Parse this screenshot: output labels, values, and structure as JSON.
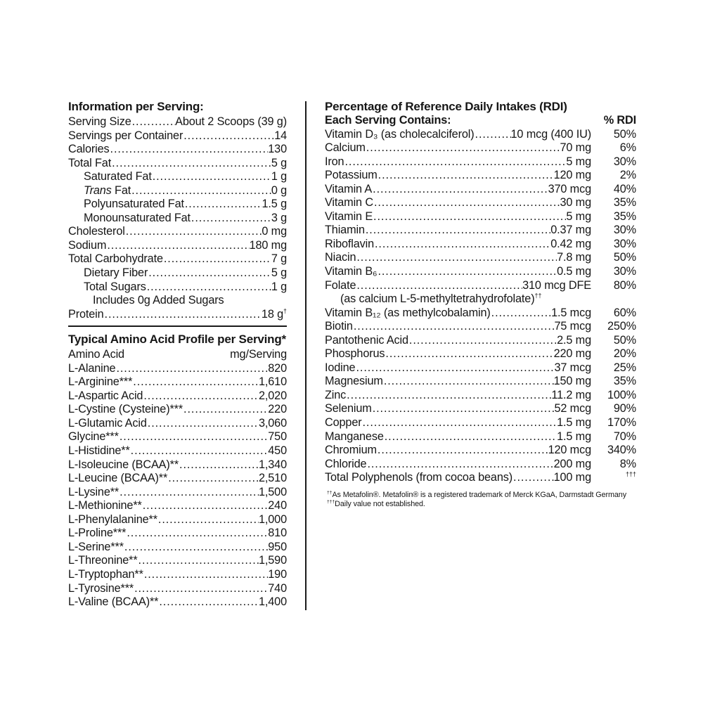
{
  "info": {
    "title": "Information per Serving:",
    "rows": [
      {
        "label": "Serving Size",
        "value": "About 2 Scoops (39 g)"
      },
      {
        "label": "Servings per Container",
        "value": "14"
      },
      {
        "label": "Calories",
        "value": "130"
      },
      {
        "label": "Total Fat",
        "value": "5 g"
      },
      {
        "label": "Saturated Fat",
        "value": "1 g",
        "indent": 1
      },
      {
        "label_em": "Trans",
        "label": " Fat",
        "value": "0 g",
        "indent": 1
      },
      {
        "label": "Polyunsaturated Fat",
        "value": "1.5 g",
        "indent": 1
      },
      {
        "label": "Monounsaturated Fat",
        "value": "3 g",
        "indent": 1
      },
      {
        "label": "Cholesterol",
        "value": "0 mg"
      },
      {
        "label": "Sodium",
        "value": "180 mg"
      },
      {
        "label": "Total Carbohydrate",
        "value": "7 g"
      },
      {
        "label": "Dietary Fiber",
        "value": "5 g",
        "indent": 1
      },
      {
        "label": "Total Sugars",
        "value": "1 g",
        "indent": 1
      },
      {
        "label": "Includes 0g Added Sugars",
        "indent": 2
      },
      {
        "label": "Protein",
        "value": "18 g",
        "value_sup": "†"
      }
    ]
  },
  "amino": {
    "title": "Typical Amino Acid Profile per Serving*",
    "col_label": "Amino Acid",
    "col_value": "mg/Serving",
    "rows": [
      {
        "label": "L-Alanine",
        "value": "820"
      },
      {
        "label": "L-Arginine***",
        "value": "1,610"
      },
      {
        "label": "L-Aspartic Acid",
        "value": "2,020"
      },
      {
        "label": "L-Cystine (Cysteine)***",
        "value": "220"
      },
      {
        "label": "L-Glutamic Acid",
        "value": "3,060"
      },
      {
        "label": "Glycine***",
        "value": "750"
      },
      {
        "label": "L-Histidine**",
        "value": "450"
      },
      {
        "label": "L-Isoleucine (BCAA)**",
        "value": "1,340"
      },
      {
        "label": "L-Leucine (BCAA)**",
        "value": "2,510"
      },
      {
        "label": "L-Lysine**",
        "value": "1,500"
      },
      {
        "label": "L-Methionine**",
        "value": "240"
      },
      {
        "label": "L-Phenylalanine**",
        "value": "1,000"
      },
      {
        "label": "L-Proline***",
        "value": "810"
      },
      {
        "label": "L-Serine***",
        "value": "950"
      },
      {
        "label": "L-Threonine**",
        "value": "1,590"
      },
      {
        "label": "L-Tryptophan**",
        "value": "190"
      },
      {
        "label": "L-Tyrosine***",
        "value": "740"
      },
      {
        "label": "L-Valine (BCAA)**",
        "value": "1,400"
      }
    ]
  },
  "rdi": {
    "title": "Percentage of Reference Daily Intakes (RDI)",
    "col_label": "Each Serving Contains:",
    "col_percent": "% RDI",
    "rows": [
      {
        "label": "Vitamin D₃ (as cholecalciferol)",
        "value": "10 mcg (400 IU)",
        "percent": "50%"
      },
      {
        "label": "Calcium",
        "value": "70 mg",
        "percent": "6%"
      },
      {
        "label": "Iron",
        "value": "5 mg",
        "percent": "30%"
      },
      {
        "label": "Potassium",
        "value": "120 mg",
        "percent": "2%"
      },
      {
        "label": "Vitamin A",
        "value": "370 mcg",
        "percent": "40%"
      },
      {
        "label": "Vitamin C",
        "value": "30 mg",
        "percent": "35%"
      },
      {
        "label": "Vitamin E",
        "value": "5 mg",
        "percent": "35%"
      },
      {
        "label": "Thiamin",
        "value": "0.37 mg",
        "percent": "30%"
      },
      {
        "label": "Riboflavin",
        "value": "0.42 mg",
        "percent": "30%"
      },
      {
        "label": "Niacin",
        "value": "7.8 mg",
        "percent": "50%"
      },
      {
        "label": "Vitamin B₆",
        "value": "0.5 mg",
        "percent": "30%"
      },
      {
        "label": "Folate",
        "value": "310 mcg DFE",
        "percent": "80%"
      },
      {
        "label": "(as calcium L-5-methyltetrahydrofolate)",
        "label_sup": "††",
        "indent": 1
      },
      {
        "label": "Vitamin B₁₂ (as methylcobalamin)",
        "value": "1.5 mcg",
        "percent": "60%"
      },
      {
        "label": "Biotin",
        "value": "75 mcg",
        "percent": "250%"
      },
      {
        "label": "Pantothenic Acid",
        "value": "2.5 mg",
        "percent": "50%"
      },
      {
        "label": "Phosphorus",
        "value": "220 mg",
        "percent": "20%"
      },
      {
        "label": "Iodine",
        "value": "37 mcg",
        "percent": "25%"
      },
      {
        "label": "Magnesium",
        "value": "150 mg",
        "percent": "35%"
      },
      {
        "label": "Zinc",
        "value": "11.2 mg",
        "percent": "100%"
      },
      {
        "label": "Selenium",
        "value": "52 mcg",
        "percent": "90%"
      },
      {
        "label": "Copper",
        "value": "1.5 mg",
        "percent": "170%"
      },
      {
        "label": "Manganese",
        "value": "1.5 mg",
        "percent": "70%"
      },
      {
        "label": "Chromium",
        "value": "120 mcg",
        "percent": "340%"
      },
      {
        "label": "Chloride",
        "value": "200 mg",
        "percent": "8%"
      },
      {
        "label": "Total Polyphenols (from cocoa beans)",
        "value": "100 mg",
        "percent_sup": "†††"
      }
    ],
    "footnotes": [
      {
        "sup": "††",
        "text": "As Metafolin®. Metafolin® is a registered trademark of Merck KGaA, Darmstadt Germany"
      },
      {
        "sup": "†††",
        "text": "Daily value not established."
      }
    ]
  }
}
